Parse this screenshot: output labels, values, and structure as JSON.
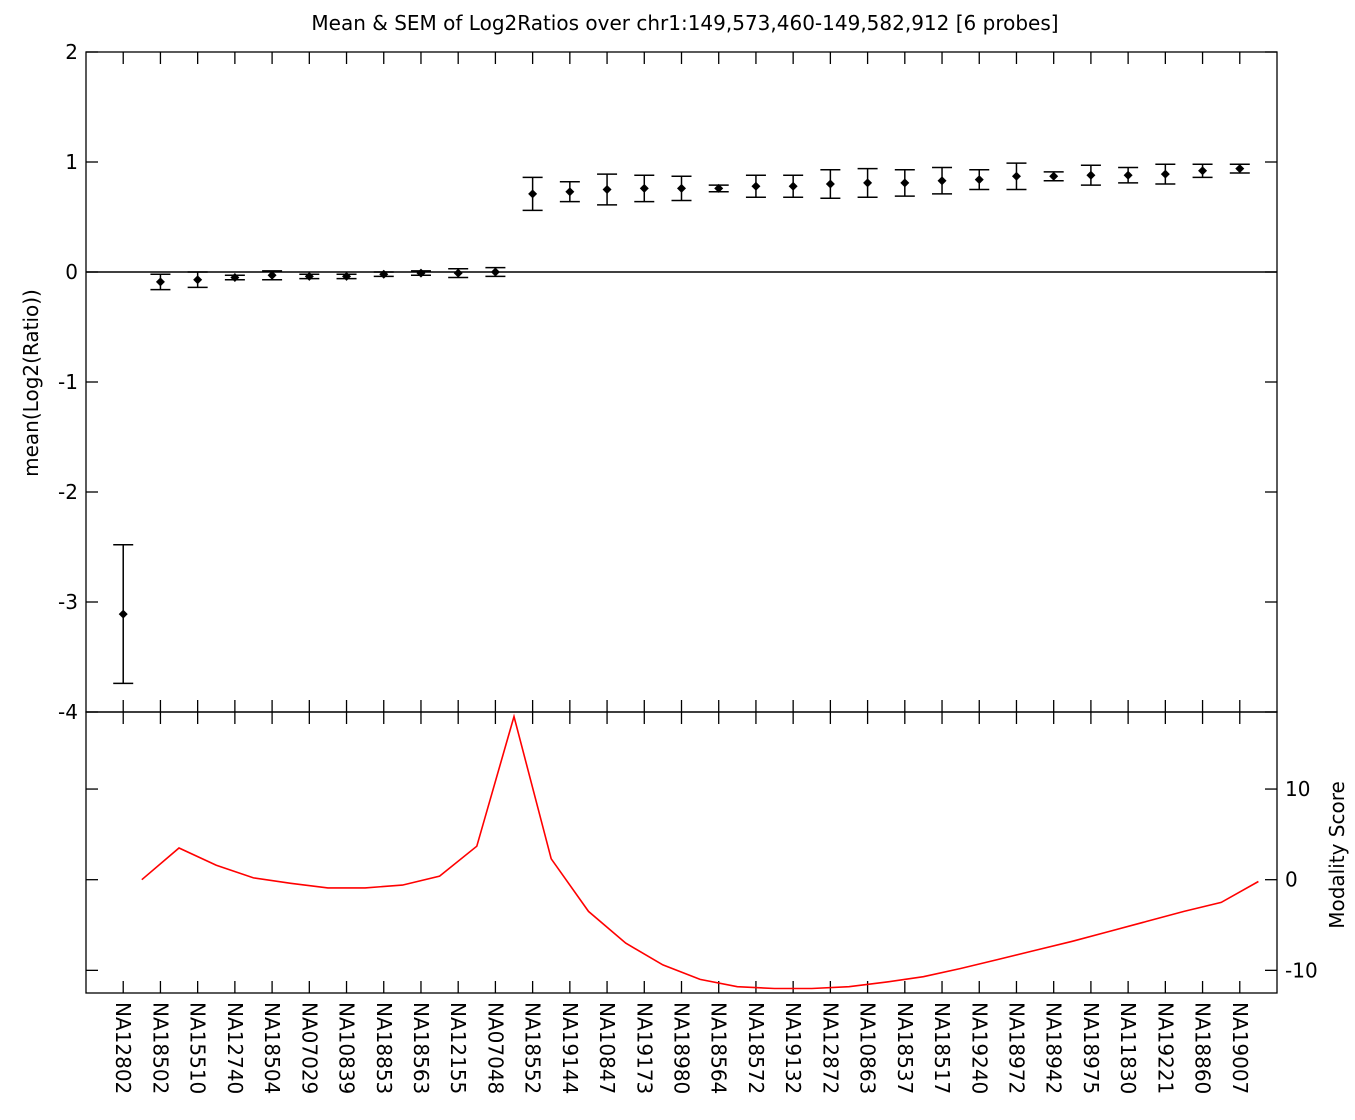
{
  "chart_data": [
    {
      "type": "scatter",
      "title": "Mean & SEM of Log2Ratios over chr1:149,573,460-149,582,912  [6 probes]",
      "ylabel": "mean(Log2(Ratio))",
      "ylim": [
        -4,
        2
      ],
      "yticks": [
        2,
        1,
        0,
        -1,
        -2,
        -3,
        -4
      ],
      "grid": false,
      "reference_line_y": 0,
      "categories": [
        "NA12802",
        "NA18502",
        "NA15510",
        "NA12740",
        "NA18504",
        "NA07029",
        "NA10839",
        "NA18853",
        "NA18563",
        "NA12155",
        "NA07048",
        "NA18552",
        "NA19144",
        "NA10847",
        "NA19173",
        "NA18980",
        "NA18564",
        "NA18572",
        "NA19132",
        "NA12872",
        "NA10863",
        "NA18537",
        "NA18517",
        "NA19240",
        "NA18972",
        "NA18942",
        "NA18975",
        "NA11830",
        "NA19221",
        "NA18860",
        "NA19007"
      ],
      "series": [
        {
          "mean": [
            -3.11,
            -0.09,
            -0.07,
            -0.05,
            -0.03,
            -0.04,
            -0.04,
            -0.02,
            -0.01,
            -0.01,
            0.0,
            0.71,
            0.73,
            0.75,
            0.76,
            0.76,
            0.76,
            0.78,
            0.78,
            0.8,
            0.81,
            0.81,
            0.83,
            0.84,
            0.87,
            0.87,
            0.88,
            0.88,
            0.89,
            0.92,
            0.94
          ],
          "sem": [
            0.63,
            0.07,
            0.07,
            0.02,
            0.04,
            0.02,
            0.02,
            0.02,
            0.02,
            0.04,
            0.04,
            0.15,
            0.09,
            0.14,
            0.12,
            0.11,
            0.03,
            0.1,
            0.1,
            0.13,
            0.13,
            0.12,
            0.12,
            0.09,
            0.12,
            0.04,
            0.09,
            0.07,
            0.09,
            0.06,
            0.04
          ]
        }
      ]
    },
    {
      "type": "line",
      "ylabel": "Modality Score",
      "ylim": [
        -12.5,
        18.5
      ],
      "yticks": [
        10,
        0,
        -10
      ],
      "grid": false,
      "line_color": "#ff0000",
      "x_category_offset": 0.5,
      "series": [
        {
          "values": [
            0.0,
            3.5,
            1.6,
            0.2,
            -0.4,
            -0.9,
            -0.9,
            -0.6,
            0.4,
            3.7,
            18.0,
            2.3,
            -3.5,
            -7.0,
            -9.4,
            -11.0,
            -11.8,
            -12.0,
            -12.0,
            -11.8,
            -11.3,
            -10.7,
            -9.8,
            -8.8,
            -7.8,
            -6.8,
            -5.7,
            -4.6,
            -3.5,
            -2.5,
            -0.2
          ]
        }
      ]
    }
  ]
}
